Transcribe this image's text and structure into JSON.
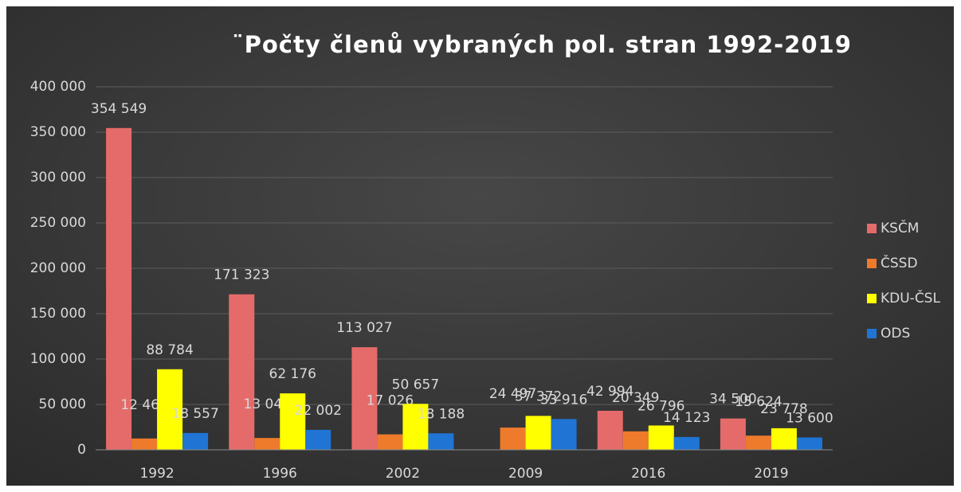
{
  "chart_data": {
    "type": "bar",
    "title": "¨Počty členů vybraných pol. stran 1992-2019",
    "categories": [
      "1992",
      "1996",
      "2002",
      "2009",
      "2016",
      "2019"
    ],
    "series": [
      {
        "name": "KSČM",
        "color": "#e56b6b",
        "values": [
          354549,
          171323,
          113027,
          null,
          42994,
          34500
        ],
        "value_labels": [
          "354 549",
          "171 323",
          "113 027",
          null,
          "42 994",
          "34 500"
        ]
      },
      {
        "name": "ČSSD",
        "color": "#ee7a2c",
        "values": [
          12468,
          13043,
          17026,
          24497,
          20349,
          15624
        ],
        "value_labels": [
          "12 468",
          "13 043",
          "17 026",
          "24 497",
          "20 349",
          "15 624"
        ]
      },
      {
        "name": "KDU-ČSL",
        "color": "#ffff00",
        "values": [
          88784,
          62176,
          50657,
          37372,
          26796,
          23778
        ],
        "value_labels": [
          "88 784",
          "62 176",
          "50 657",
          "37 372",
          "26 796",
          "23 778"
        ]
      },
      {
        "name": "ODS",
        "color": "#1f74d4",
        "values": [
          18557,
          22002,
          18188,
          33916,
          14123,
          13600
        ],
        "value_labels": [
          "18 557",
          "22 002",
          "18 188",
          "33 916",
          "14 123",
          "13 600"
        ]
      }
    ],
    "ylim": [
      0,
      400000
    ],
    "yticks": [
      0,
      {
        "value": 50000,
        "label": "50 000"
      },
      {
        "value": 100000,
        "label": "100 000"
      },
      {
        "value": 150000,
        "label": "150 000"
      },
      {
        "value": 200000,
        "label": "200 000"
      },
      {
        "value": 250000,
        "label": "250 000"
      },
      {
        "value": 300000,
        "label": "300 000"
      },
      {
        "value": 350000,
        "label": "350 000"
      },
      {
        "value": 400000,
        "label": "400 000"
      }
    ],
    "grid": true,
    "legend": "right"
  }
}
